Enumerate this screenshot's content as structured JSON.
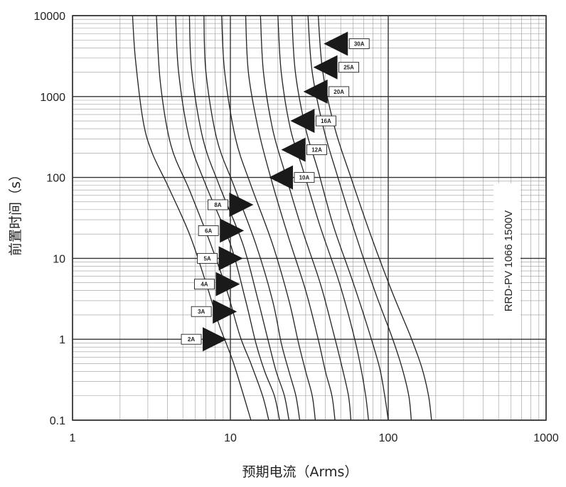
{
  "chart_data": {
    "type": "line",
    "title": "",
    "xlabel": "预期电流（Arms）",
    "ylabel": "前置时间（s）",
    "x_scale": "log",
    "y_scale": "log",
    "xlim": [
      1,
      1000
    ],
    "ylim": [
      0.1,
      10000
    ],
    "x_ticks": [
      "1",
      "10",
      "100",
      "1000"
    ],
    "y_ticks": [
      "0.1",
      "1",
      "10",
      "100",
      "1000",
      "10000"
    ],
    "grid": true,
    "annotation": "RRD-PV 1066 1500V",
    "series": [
      {
        "name": "2A",
        "label_side": "left",
        "label_at": [
          9.5,
          1.0
        ],
        "points": [
          [
            2.4,
            10000
          ],
          [
            2.5,
            3000
          ],
          [
            2.8,
            500
          ],
          [
            3.2,
            200
          ],
          [
            4.0,
            80
          ],
          [
            5.5,
            20
          ],
          [
            7.0,
            5
          ],
          [
            8.5,
            1.5
          ],
          [
            10.5,
            0.5
          ],
          [
            13.5,
            0.1
          ]
        ]
      },
      {
        "name": "3A",
        "label_side": "left",
        "label_at": [
          11.0,
          2.2
        ],
        "points": [
          [
            3.4,
            10000
          ],
          [
            3.6,
            1500
          ],
          [
            4.2,
            250
          ],
          [
            5.5,
            70
          ],
          [
            7.5,
            15
          ],
          [
            9.5,
            4
          ],
          [
            11.5,
            1.1
          ],
          [
            13.5,
            0.5
          ],
          [
            16,
            0.2
          ],
          [
            17.5,
            0.1
          ]
        ]
      },
      {
        "name": "4A",
        "label_side": "left",
        "label_at": [
          11.5,
          4.8
        ],
        "points": [
          [
            4.5,
            10000
          ],
          [
            4.7,
            2000
          ],
          [
            5.5,
            300
          ],
          [
            7.0,
            80
          ],
          [
            10,
            15
          ],
          [
            12.5,
            3
          ],
          [
            14.5,
            0.9
          ],
          [
            16.5,
            0.4
          ],
          [
            19,
            0.2
          ],
          [
            20.5,
            0.1
          ]
        ]
      },
      {
        "name": "5A",
        "label_side": "left",
        "label_at": [
          12.0,
          10.0
        ],
        "points": [
          [
            5.5,
            10000
          ],
          [
            5.7,
            2000
          ],
          [
            6.7,
            300
          ],
          [
            8.5,
            80
          ],
          [
            12,
            15
          ],
          [
            15,
            3
          ],
          [
            17.5,
            0.9
          ],
          [
            19.5,
            0.4
          ],
          [
            22,
            0.2
          ],
          [
            23.5,
            0.1
          ]
        ]
      },
      {
        "name": "6A",
        "label_side": "left",
        "label_at": [
          12.2,
          22.0
        ],
        "points": [
          [
            6.8,
            10000
          ],
          [
            7.0,
            2000
          ],
          [
            8.2,
            300
          ],
          [
            10.5,
            80
          ],
          [
            14.5,
            15
          ],
          [
            18.5,
            3
          ],
          [
            21,
            0.9
          ],
          [
            23.5,
            0.4
          ],
          [
            26,
            0.2
          ],
          [
            27.5,
            0.1
          ]
        ]
      },
      {
        "name": "8A",
        "label_side": "left",
        "label_at": [
          14.0,
          46.0
        ],
        "points": [
          [
            8.8,
            10000
          ],
          [
            9.2,
            2000
          ],
          [
            10.8,
            300
          ],
          [
            13.5,
            80
          ],
          [
            18.5,
            15
          ],
          [
            23.5,
            3
          ],
          [
            27,
            0.9
          ],
          [
            30,
            0.4
          ],
          [
            33,
            0.2
          ],
          [
            34.5,
            0.1
          ]
        ]
      },
      {
        "name": "10A",
        "label_side": "right",
        "label_at": [
          17.5,
          100.0
        ],
        "points": [
          [
            12.5,
            10000
          ],
          [
            13,
            2000
          ],
          [
            15,
            400
          ],
          [
            18,
            100
          ],
          [
            23,
            20
          ],
          [
            30,
            4
          ],
          [
            36,
            1.0
          ],
          [
            40,
            0.4
          ],
          [
            44,
            0.2
          ],
          [
            46,
            0.1
          ]
        ]
      },
      {
        "name": "12A",
        "label_side": "right",
        "label_at": [
          21.0,
          220.0
        ],
        "points": [
          [
            15.5,
            10000
          ],
          [
            16.2,
            2000
          ],
          [
            18.5,
            400
          ],
          [
            22,
            120
          ],
          [
            28,
            25
          ],
          [
            37,
            5
          ],
          [
            45,
            1.2
          ],
          [
            51,
            0.45
          ],
          [
            56,
            0.2
          ],
          [
            58,
            0.1
          ]
        ]
      },
      {
        "name": "16A",
        "label_side": "right",
        "label_at": [
          24.0,
          500.0
        ],
        "points": [
          [
            20,
            10000
          ],
          [
            21,
            2000
          ],
          [
            24,
            400
          ],
          [
            29,
            120
          ],
          [
            37,
            25
          ],
          [
            49,
            5
          ],
          [
            60,
            1.2
          ],
          [
            67,
            0.45
          ],
          [
            72,
            0.2
          ],
          [
            75,
            0.1
          ]
        ]
      },
      {
        "name": "20A",
        "label_side": "right",
        "label_at": [
          29.0,
          1150.0
        ],
        "points": [
          [
            24.5,
            10000
          ],
          [
            25.8,
            2000
          ],
          [
            30,
            400
          ],
          [
            36,
            120
          ],
          [
            45,
            25
          ],
          [
            60,
            5
          ],
          [
            75,
            1.3
          ],
          [
            88,
            0.45
          ],
          [
            95,
            0.2
          ],
          [
            100,
            0.1
          ]
        ]
      },
      {
        "name": "25A",
        "label_side": "right",
        "label_at": [
          33.5,
          2300.0
        ],
        "points": [
          [
            31,
            10000
          ],
          [
            33,
            2000
          ],
          [
            39,
            400
          ],
          [
            48,
            100
          ],
          [
            62,
            20
          ],
          [
            82,
            4
          ],
          [
            105,
            1.1
          ],
          [
            122,
            0.45
          ],
          [
            135,
            0.2
          ],
          [
            140,
            0.1
          ]
        ]
      },
      {
        "name": "30A",
        "label_side": "right",
        "label_at": [
          39.0,
          4500.0
        ],
        "points": [
          [
            36,
            10000
          ],
          [
            38.5,
            2000
          ],
          [
            46,
            400
          ],
          [
            58,
            100
          ],
          [
            77,
            20
          ],
          [
            105,
            4
          ],
          [
            138,
            1.1
          ],
          [
            163,
            0.45
          ],
          [
            180,
            0.2
          ],
          [
            188,
            0.1
          ]
        ]
      }
    ]
  }
}
